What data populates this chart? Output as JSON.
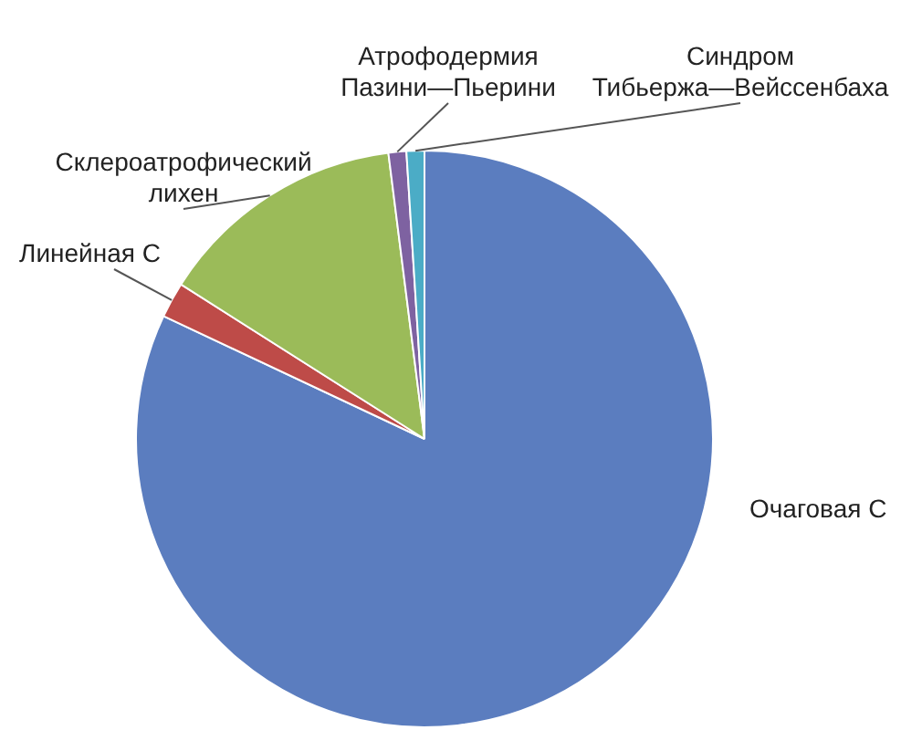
{
  "chart_data": {
    "type": "pie",
    "categories": [
      "Очаговая С",
      "Линейная С",
      "Склероатрофический лихен",
      "Атрофодермия Пазини—Пьерини",
      "Синдром Тибьержа—Вейссенбаха"
    ],
    "values": [
      82,
      2,
      14,
      1,
      1
    ],
    "colors": [
      "#5b7dbf",
      "#be4b48",
      "#9bbb59",
      "#7e62a1",
      "#4bacc6"
    ]
  }
}
